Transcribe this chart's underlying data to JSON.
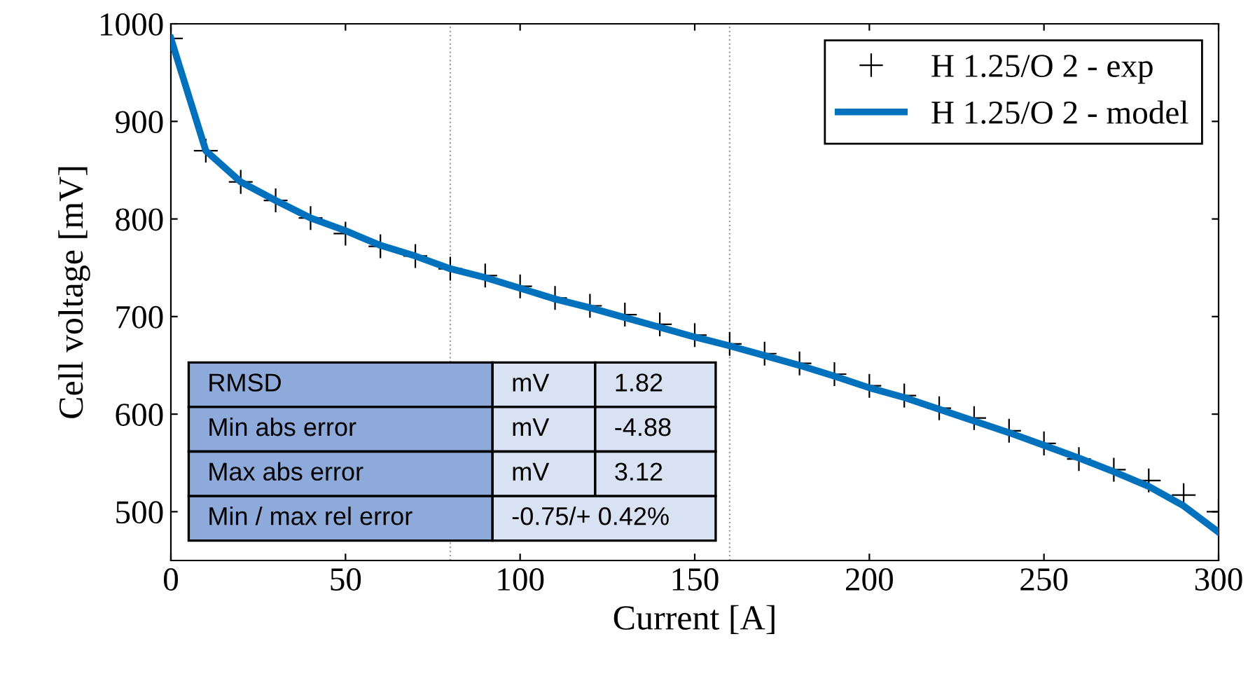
{
  "chart_data": {
    "type": "line",
    "xlabel": "Current [A]",
    "ylabel": "Cell voltage [mV]",
    "x": [
      0,
      10,
      20,
      30,
      40,
      50,
      60,
      70,
      80,
      90,
      100,
      110,
      120,
      130,
      140,
      150,
      160,
      170,
      180,
      190,
      200,
      210,
      220,
      230,
      240,
      250,
      260,
      270,
      280,
      290,
      300
    ],
    "series": [
      {
        "name": "H 1.25/O 2 - exp",
        "type": "scatter",
        "marker": "cross",
        "color": "#000000",
        "values": [
          985,
          870,
          838,
          819,
          801,
          785,
          772,
          762,
          749,
          742,
          731,
          719,
          711,
          702,
          692,
          681,
          672,
          662,
          652,
          641,
          629,
          619,
          606,
          596,
          583,
          570,
          554,
          543,
          532,
          517,
          500
        ]
      },
      {
        "name": "H 1.25/O 2 - model",
        "color": "#0072bd",
        "values": [
          985,
          870,
          838,
          819,
          801,
          788,
          773,
          762,
          749,
          740,
          729,
          718,
          709,
          699,
          689,
          679,
          670,
          660,
          650,
          639,
          627,
          617,
          605,
          593,
          581,
          568,
          555,
          541,
          526,
          506,
          479
        ]
      }
    ],
    "xlim": [
      0,
      300
    ],
    "xticks": [
      0,
      50,
      100,
      150,
      200,
      250,
      300
    ],
    "ylim": [
      450,
      1000
    ],
    "yticks": [
      500,
      600,
      700,
      800,
      900,
      1000
    ],
    "ref_lines": [
      {
        "axis": "x",
        "value": 80,
        "color": "#a0a0a0",
        "line_style": "dotted"
      },
      {
        "axis": "x",
        "value": 160,
        "color": "#a0a0a0",
        "line_style": "dotted"
      }
    ],
    "legend": "top right",
    "grid": false,
    "annotations": [
      "RMSD",
      "mV",
      "1.82",
      "Min abs error",
      "mV",
      "-4.88",
      "Max abs error",
      "mV",
      "3.12",
      "Min / max rel error",
      "-0.75/+ 0.42%"
    ]
  }
}
